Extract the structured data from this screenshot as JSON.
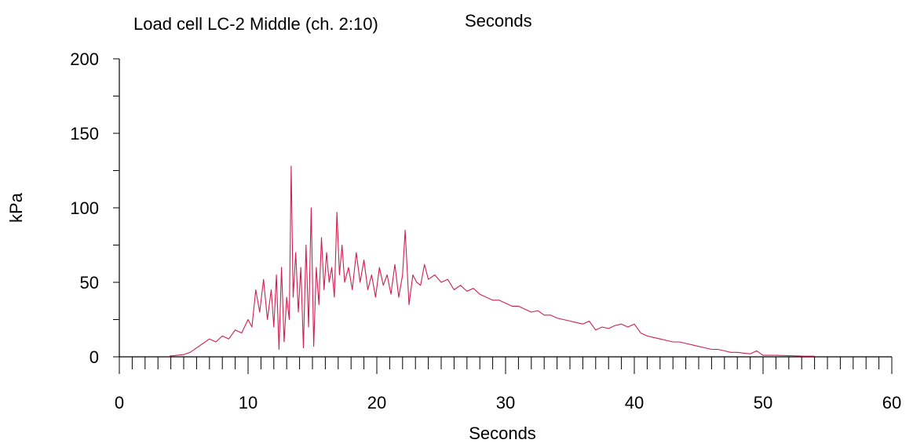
{
  "chart_data": {
    "type": "line",
    "title": "Load cell LC-2 Middle (ch. 2:10)",
    "subtitle": "Seconds",
    "xlabel": "Seconds",
    "ylabel": "kPa",
    "xlim": [
      0,
      60
    ],
    "ylim": [
      0,
      200
    ],
    "x_ticks": [
      0,
      10,
      20,
      30,
      40,
      50,
      60
    ],
    "y_ticks": [
      0,
      50,
      100,
      150,
      200
    ],
    "grid": false,
    "series": [
      {
        "color": "#d01f4e",
        "x": [
          3.9,
          4.5,
          5.0,
          5.5,
          6.0,
          6.5,
          7.0,
          7.5,
          8.0,
          8.5,
          9.0,
          9.5,
          10.0,
          10.3,
          10.6,
          10.9,
          11.2,
          11.5,
          11.8,
          12.0,
          12.2,
          12.4,
          12.6,
          12.8,
          13.0,
          13.2,
          13.35,
          13.5,
          13.7,
          13.9,
          14.1,
          14.3,
          14.5,
          14.7,
          14.9,
          15.1,
          15.3,
          15.5,
          15.7,
          15.9,
          16.1,
          16.3,
          16.5,
          16.7,
          16.9,
          17.1,
          17.3,
          17.5,
          17.8,
          18.1,
          18.4,
          18.7,
          19.0,
          19.3,
          19.6,
          19.9,
          20.2,
          20.5,
          20.8,
          21.1,
          21.4,
          21.7,
          22.0,
          22.2,
          22.5,
          22.8,
          23.1,
          23.4,
          23.7,
          24.0,
          24.5,
          25.0,
          25.5,
          26.0,
          26.5,
          27.0,
          27.5,
          28.0,
          28.5,
          29.0,
          29.5,
          30.0,
          30.5,
          31.0,
          31.5,
          32.0,
          32.5,
          33.0,
          33.5,
          34.0,
          34.5,
          35.0,
          35.5,
          36.0,
          36.5,
          37.0,
          37.5,
          38.0,
          38.5,
          39.0,
          39.5,
          40.0,
          40.5,
          41.0,
          41.5,
          42.0,
          42.5,
          43.0,
          43.5,
          44.0,
          44.5,
          45.0,
          45.5,
          46.0,
          46.5,
          47.0,
          47.5,
          48.0,
          48.5,
          49.0,
          49.5,
          50.0,
          51.0,
          52.0,
          53.0,
          54.0
        ],
        "values": [
          0.5,
          1,
          1.5,
          3,
          6,
          9,
          12,
          10,
          14,
          12,
          18,
          16,
          25,
          20,
          45,
          30,
          52,
          25,
          45,
          20,
          55,
          5,
          60,
          10,
          40,
          25,
          128,
          40,
          70,
          30,
          60,
          6,
          75,
          20,
          100,
          7,
          60,
          35,
          80,
          45,
          70,
          50,
          60,
          40,
          97,
          55,
          75,
          50,
          60,
          45,
          70,
          50,
          65,
          45,
          55,
          40,
          60,
          48,
          55,
          42,
          62,
          40,
          55,
          85,
          35,
          55,
          50,
          48,
          62,
          52,
          55,
          50,
          52,
          45,
          48,
          44,
          46,
          42,
          40,
          38,
          38,
          36,
          34,
          34,
          32,
          30,
          31,
          28,
          28,
          26,
          25,
          24,
          23,
          22,
          24,
          18,
          20,
          19,
          21,
          22,
          20,
          22,
          16,
          14,
          13,
          12,
          11,
          10,
          10,
          9,
          8,
          7,
          6,
          5,
          5,
          4,
          3,
          3,
          2.5,
          2,
          4,
          1,
          1,
          0.8,
          0.5,
          0.4
        ]
      }
    ]
  }
}
